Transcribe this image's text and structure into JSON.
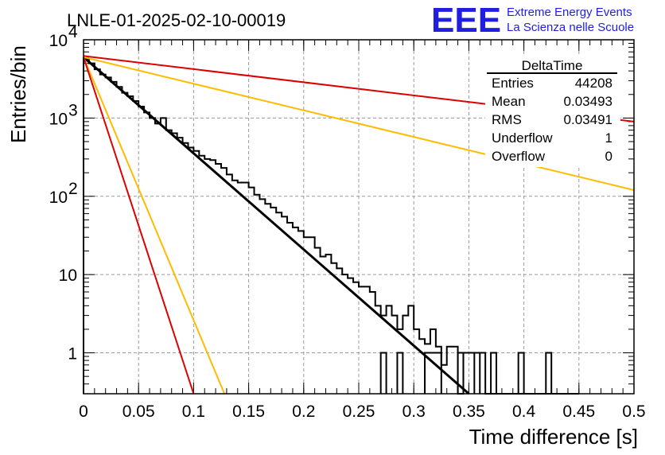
{
  "chart_data": {
    "type": "line",
    "title": "LNLE-01-2025-02-10-00019",
    "xlabel": "Time difference [s]",
    "ylabel": "Entries/bin",
    "xlim": [
      0,
      0.5
    ],
    "ylim": [
      0.3,
      10000
    ],
    "log_y": true,
    "grid": true,
    "x_ticks": [
      "0",
      "0.05",
      "0.1",
      "0.15",
      "0.2",
      "0.25",
      "0.3",
      "0.35",
      "0.4",
      "0.45",
      "0.5"
    ],
    "y_ticks": [
      1,
      10,
      100,
      1000,
      10000
    ],
    "logo": {
      "big": "EEE",
      "line1": "Extreme Energy Events",
      "line2": "La Scienza nelle Scuole",
      "color": "#1f1fe0"
    },
    "stats_box": {
      "title": "DeltaTime",
      "rows": [
        {
          "label": "Entries",
          "value": "44208"
        },
        {
          "label": "Mean",
          "value": "0.03493"
        },
        {
          "label": "RMS",
          "value": "0.03491"
        },
        {
          "label": "Underflow",
          "value": "1"
        },
        {
          "label": "Overflow",
          "value": "0"
        }
      ]
    },
    "histogram": {
      "color": "#000000",
      "bin_width": 0.005,
      "counts": [
        5600,
        5000,
        4200,
        3600,
        3300,
        2900,
        2500,
        2100,
        1900,
        1650,
        1400,
        1180,
        1000,
        850,
        1000,
        700,
        640,
        560,
        480,
        420,
        380,
        330,
        300,
        290,
        260,
        230,
        190,
        160,
        150,
        150,
        130,
        105,
        92,
        80,
        72,
        62,
        55,
        46,
        40,
        36,
        30,
        30,
        22,
        17,
        18,
        14,
        12,
        10,
        9,
        8,
        7,
        7,
        6,
        4,
        3,
        4,
        3,
        2,
        3,
        4,
        2,
        1.5,
        1.3,
        2,
        1.2,
        0.7,
        1.2,
        1.2,
        0.3,
        1,
        1,
        1,
        1,
        0.3,
        0.3,
        0.3,
        0.3,
        0.3,
        0.3,
        0.3,
        0.3,
        0.3,
        0.3,
        0.3,
        0.3,
        0.3,
        0.3,
        0.3,
        0.3,
        0.3
      ]
    },
    "extra_hist_bins": [
      {
        "x0": 0.27,
        "x1": 0.275,
        "y": 1
      },
      {
        "x0": 0.285,
        "x1": 0.29,
        "y": 1
      },
      {
        "x0": 0.31,
        "x1": 0.325,
        "y": 1
      },
      {
        "x0": 0.34,
        "x1": 0.345,
        "y": 1
      },
      {
        "x0": 0.355,
        "x1": 0.36,
        "y": 1
      },
      {
        "x0": 0.37,
        "x1": 0.375,
        "y": 1
      },
      {
        "x0": 0.395,
        "x1": 0.4,
        "y": 1
      },
      {
        "x0": 0.42,
        "x1": 0.425,
        "y": 1
      }
    ],
    "series": [
      {
        "color": "#000000",
        "x": [
          0,
          0.35
        ],
        "y": [
          6000,
          0.3
        ],
        "width": 3
      },
      {
        "color": "#dd0000",
        "x": [
          0,
          0.5
        ],
        "y": [
          6200,
          900
        ],
        "width": 2
      },
      {
        "color": "#ffbb00",
        "x": [
          0,
          0.5
        ],
        "y": [
          6000,
          120
        ],
        "width": 2
      },
      {
        "color": "#ffbb00",
        "x": [
          0,
          0.128
        ],
        "y": [
          6000,
          0.3
        ],
        "width": 2
      },
      {
        "color": "#dd0000",
        "x": [
          0,
          0.1
        ],
        "y": [
          6000,
          0.3
        ],
        "width": 2
      }
    ]
  }
}
